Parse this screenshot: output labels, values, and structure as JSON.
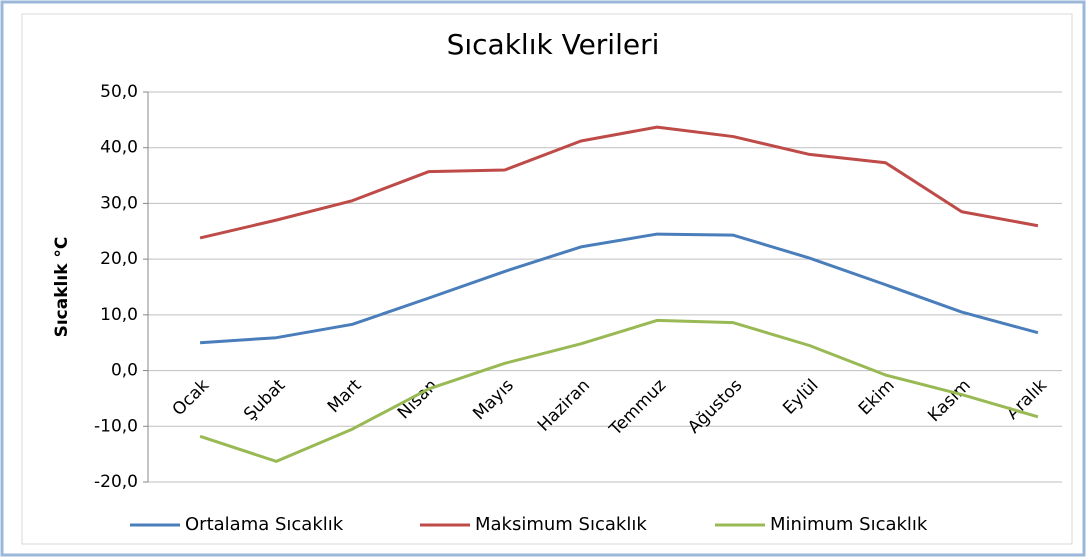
{
  "chart_data": {
    "type": "line",
    "title": "Sıcaklık Verileri",
    "y_label": "Sıcaklık °C",
    "categories": [
      "Ocak",
      "Şubat",
      "Mart",
      "Nisan",
      "Mayıs",
      "Haziran",
      "Temmuz",
      "Ağustos",
      "Eylül",
      "Ekim",
      "Kasım",
      "Aralık"
    ],
    "series": [
      {
        "name": "Ortalama Sıcaklık",
        "color": "#4a7ebb",
        "values": [
          5.0,
          5.9,
          8.3,
          13.0,
          17.8,
          22.2,
          24.5,
          24.3,
          20.2,
          15.4,
          10.5,
          6.8
        ]
      },
      {
        "name": "Maksimum Sıcaklık",
        "color": "#be4b48",
        "values": [
          23.8,
          27.0,
          30.5,
          35.7,
          36.0,
          41.2,
          43.7,
          42.0,
          38.8,
          37.3,
          28.5,
          26.0
        ]
      },
      {
        "name": "Minimum Sıcaklık",
        "color": "#98b954",
        "values": [
          -11.8,
          -16.3,
          -10.5,
          -3.3,
          1.3,
          4.8,
          9.0,
          8.6,
          4.5,
          -0.8,
          -4.3,
          -8.3
        ]
      }
    ],
    "ylim": [
      -20,
      50
    ],
    "yticks": [
      {
        "value": -20,
        "label": "-20,0"
      },
      {
        "value": -10,
        "label": "-10,0"
      },
      {
        "value": 0,
        "label": "0,0"
      },
      {
        "value": 10,
        "label": "10,0"
      },
      {
        "value": 20,
        "label": "20,0"
      },
      {
        "value": 30,
        "label": "30,0"
      },
      {
        "value": 40,
        "label": "40,0"
      },
      {
        "value": 50,
        "label": "50,0"
      }
    ],
    "grid": true
  }
}
